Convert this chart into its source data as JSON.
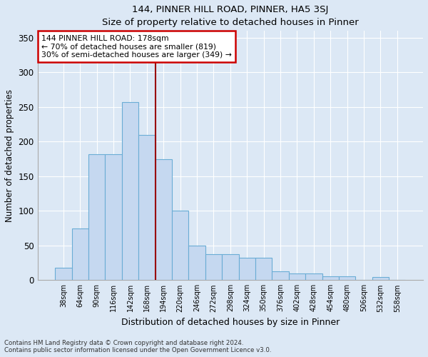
{
  "title": "144, PINNER HILL ROAD, PINNER, HA5 3SJ",
  "subtitle": "Size of property relative to detached houses in Pinner",
  "xlabel": "Distribution of detached houses by size in Pinner",
  "ylabel": "Number of detached properties",
  "bar_labels": [
    "38sqm",
    "64sqm",
    "90sqm",
    "116sqm",
    "142sqm",
    "168sqm",
    "194sqm",
    "220sqm",
    "246sqm",
    "272sqm",
    "298sqm",
    "324sqm",
    "350sqm",
    "376sqm",
    "402sqm",
    "428sqm",
    "454sqm",
    "480sqm",
    "506sqm",
    "532sqm",
    "558sqm"
  ],
  "bar_values": [
    18,
    75,
    182,
    182,
    257,
    210,
    175,
    100,
    50,
    37,
    37,
    32,
    32,
    13,
    10,
    10,
    6,
    6,
    0,
    5,
    0
  ],
  "bar_color": "#c5d8f0",
  "bar_edge_color": "#6aadd5",
  "vline_color": "#990000",
  "annotation_text": "144 PINNER HILL ROAD: 178sqm\n← 70% of detached houses are smaller (819)\n30% of semi-detached houses are larger (349) →",
  "annotation_box_color": "#cc0000",
  "ylim": [
    0,
    360
  ],
  "yticks": [
    0,
    50,
    100,
    150,
    200,
    250,
    300,
    350
  ],
  "footnote1": "Contains HM Land Registry data © Crown copyright and database right 2024.",
  "footnote2": "Contains public sector information licensed under the Open Government Licence v3.0.",
  "bg_color": "#dce8f5",
  "plot_bg_color": "#dce8f5",
  "fig_width": 6.0,
  "fig_height": 5.0,
  "dpi": 100
}
